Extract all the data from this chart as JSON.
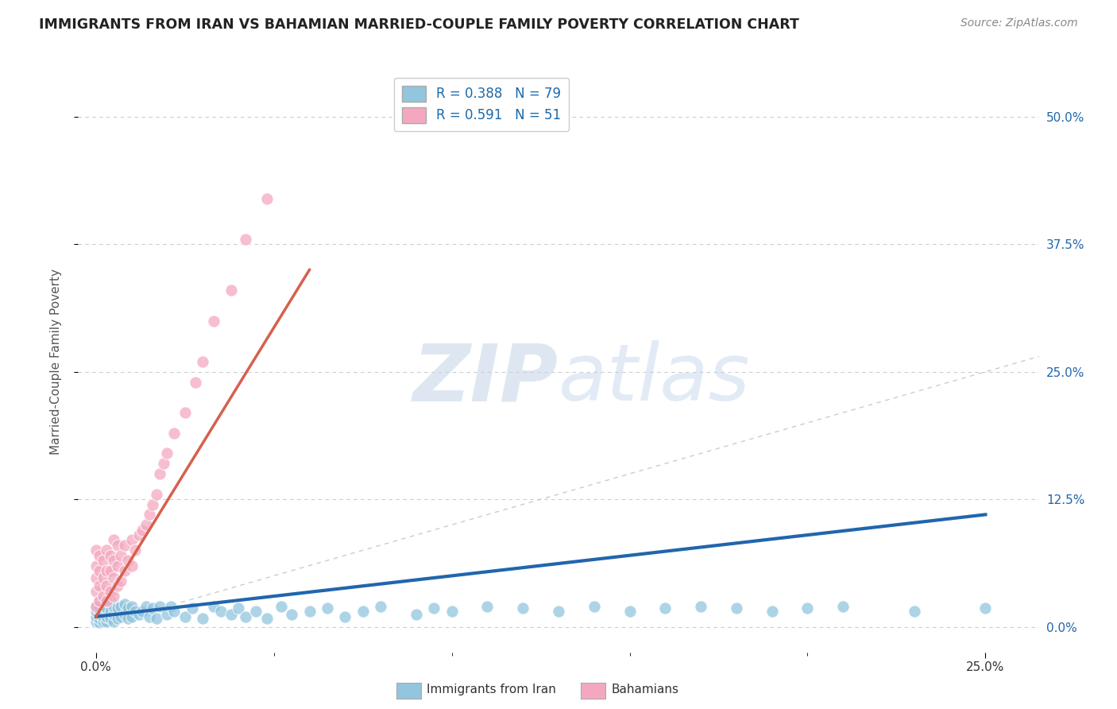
{
  "title": "IMMIGRANTS FROM IRAN VS BAHAMIAN MARRIED-COUPLE FAMILY POVERTY CORRELATION CHART",
  "source": "Source: ZipAtlas.com",
  "xlim": [
    -0.005,
    0.265
  ],
  "ylim": [
    -0.025,
    0.545
  ],
  "ylabel": "Married-Couple Family Poverty",
  "legend_labels": [
    "Immigrants from Iran",
    "Bahamians"
  ],
  "r1": 0.388,
  "n1": 79,
  "r2": 0.591,
  "n2": 51,
  "color_blue": "#92c5de",
  "color_pink": "#f4a8c0",
  "color_blue_line": "#2166ac",
  "color_pink_line": "#d6604d",
  "color_diag": "#cccccc",
  "iran_x": [
    0.0,
    0.0,
    0.0,
    0.0,
    0.001,
    0.001,
    0.001,
    0.001,
    0.001,
    0.001,
    0.002,
    0.002,
    0.002,
    0.002,
    0.002,
    0.003,
    0.003,
    0.003,
    0.003,
    0.004,
    0.004,
    0.004,
    0.005,
    0.005,
    0.005,
    0.006,
    0.006,
    0.007,
    0.007,
    0.008,
    0.008,
    0.009,
    0.009,
    0.01,
    0.01,
    0.011,
    0.012,
    0.013,
    0.014,
    0.015,
    0.016,
    0.017,
    0.018,
    0.02,
    0.021,
    0.022,
    0.025,
    0.027,
    0.03,
    0.033,
    0.035,
    0.038,
    0.04,
    0.042,
    0.045,
    0.048,
    0.052,
    0.055,
    0.06,
    0.065,
    0.07,
    0.075,
    0.08,
    0.09,
    0.095,
    0.1,
    0.11,
    0.12,
    0.13,
    0.14,
    0.15,
    0.16,
    0.17,
    0.18,
    0.19,
    0.2,
    0.21,
    0.23,
    0.25
  ],
  "iran_y": [
    0.005,
    0.01,
    0.015,
    0.02,
    0.004,
    0.008,
    0.012,
    0.016,
    0.02,
    0.025,
    0.005,
    0.01,
    0.015,
    0.02,
    0.025,
    0.005,
    0.01,
    0.018,
    0.025,
    0.008,
    0.015,
    0.025,
    0.005,
    0.012,
    0.02,
    0.008,
    0.018,
    0.01,
    0.02,
    0.012,
    0.022,
    0.008,
    0.018,
    0.01,
    0.02,
    0.015,
    0.012,
    0.015,
    0.02,
    0.01,
    0.018,
    0.008,
    0.02,
    0.012,
    0.02,
    0.015,
    0.01,
    0.018,
    0.008,
    0.02,
    0.015,
    0.012,
    0.018,
    0.01,
    0.015,
    0.008,
    0.02,
    0.012,
    0.015,
    0.018,
    0.01,
    0.015,
    0.02,
    0.012,
    0.018,
    0.015,
    0.02,
    0.018,
    0.015,
    0.02,
    0.015,
    0.018,
    0.02,
    0.018,
    0.015,
    0.018,
    0.02,
    0.015,
    0.018
  ],
  "bah_x": [
    0.0,
    0.0,
    0.0,
    0.0,
    0.0,
    0.001,
    0.001,
    0.001,
    0.001,
    0.002,
    0.002,
    0.002,
    0.003,
    0.003,
    0.003,
    0.003,
    0.004,
    0.004,
    0.004,
    0.005,
    0.005,
    0.005,
    0.005,
    0.006,
    0.006,
    0.006,
    0.007,
    0.007,
    0.008,
    0.008,
    0.009,
    0.01,
    0.01,
    0.011,
    0.012,
    0.013,
    0.014,
    0.015,
    0.016,
    0.017,
    0.018,
    0.019,
    0.02,
    0.022,
    0.025,
    0.028,
    0.03,
    0.033,
    0.038,
    0.042,
    0.048
  ],
  "bah_y": [
    0.02,
    0.035,
    0.048,
    0.06,
    0.075,
    0.025,
    0.04,
    0.055,
    0.07,
    0.03,
    0.048,
    0.065,
    0.025,
    0.04,
    0.055,
    0.075,
    0.035,
    0.055,
    0.07,
    0.03,
    0.048,
    0.065,
    0.085,
    0.04,
    0.06,
    0.08,
    0.045,
    0.07,
    0.055,
    0.08,
    0.065,
    0.06,
    0.085,
    0.075,
    0.09,
    0.095,
    0.1,
    0.11,
    0.12,
    0.13,
    0.15,
    0.16,
    0.17,
    0.19,
    0.21,
    0.24,
    0.26,
    0.3,
    0.33,
    0.38,
    0.42
  ]
}
